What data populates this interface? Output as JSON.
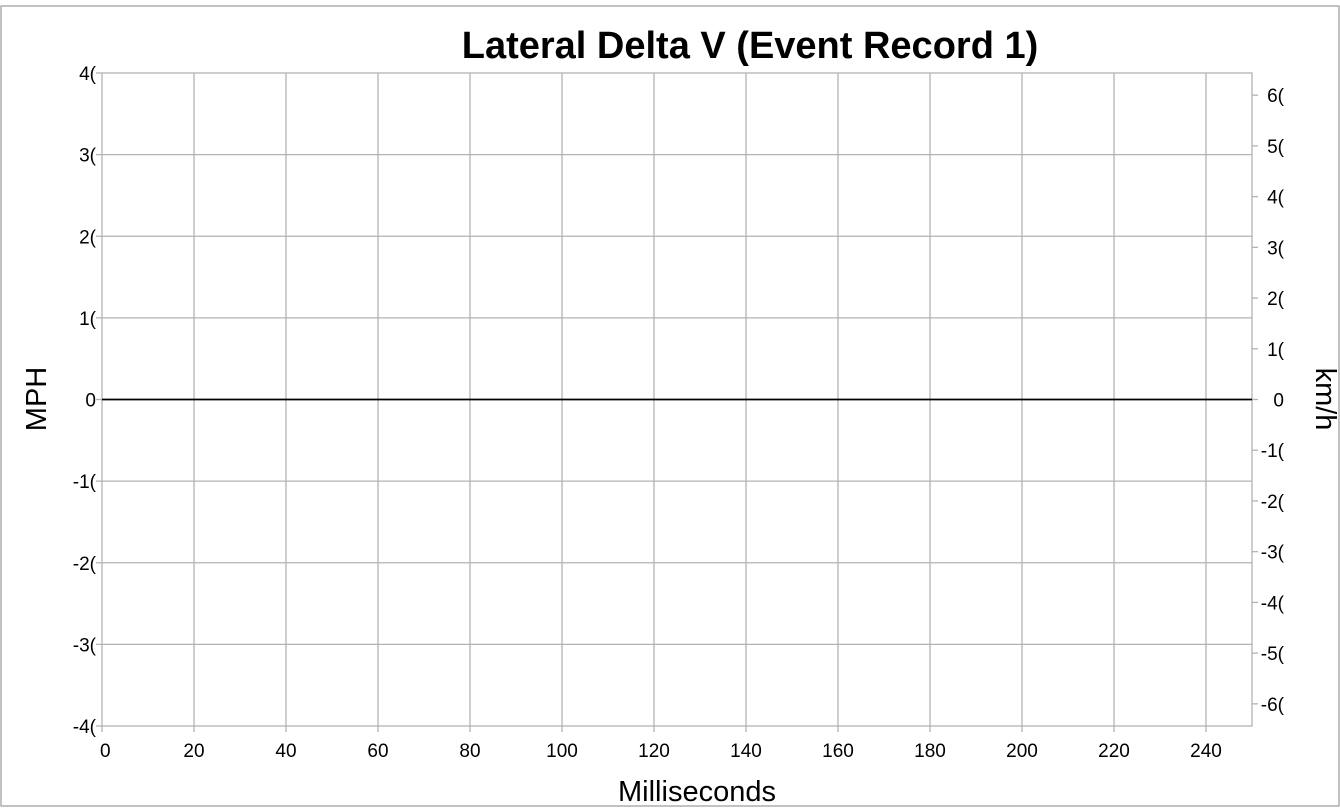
{
  "chart_data": {
    "type": "line",
    "title": "Lateral Delta V (Event Record 1)",
    "xlabel": "Milliseconds",
    "ylabel": "MPH",
    "y2label": "km/h",
    "xlim": [
      0,
      250
    ],
    "ylim": [
      -40,
      40
    ],
    "y2lim": [
      -64.37,
      64.37
    ],
    "grid": true,
    "x_ticks": [
      0,
      20,
      40,
      60,
      80,
      100,
      120,
      140,
      160,
      180,
      200,
      220,
      240
    ],
    "x_tick_labels": [
      "0",
      "20",
      "40",
      "60",
      "80",
      "100",
      "120",
      "140",
      "160",
      "180",
      "200",
      "220",
      "240"
    ],
    "y_ticks": [
      40,
      30,
      20,
      10,
      0,
      -10,
      -20,
      -30,
      -40
    ],
    "y_tick_labels": [
      "4(",
      "3(",
      "2(",
      "1(",
      "0",
      "-1(",
      "-2(",
      "-3(",
      "-4("
    ],
    "y2_ticks": [
      60,
      50,
      40,
      30,
      20,
      10,
      0,
      -10,
      -20,
      -30,
      -40,
      -50,
      -60
    ],
    "y2_tick_labels": [
      "6(",
      "5(",
      "4(",
      "3(",
      "2(",
      "1(",
      "0",
      "-1(",
      "-2(",
      "-3(",
      "-4(",
      "-5(",
      "-6("
    ],
    "series": [
      {
        "x": [
          0,
          250
        ],
        "y": [
          0,
          0
        ],
        "color": "#000000"
      }
    ]
  }
}
